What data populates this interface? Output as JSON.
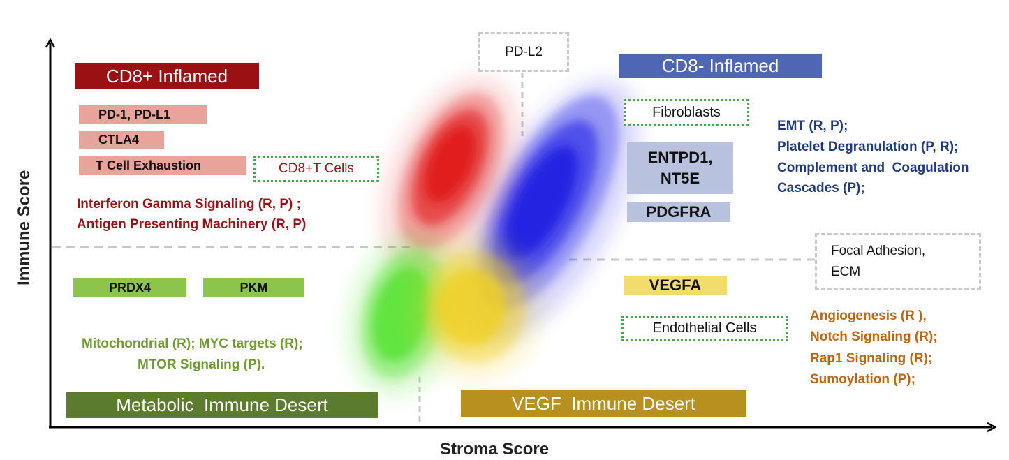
{
  "axes": {
    "x_label": "Stroma Score",
    "y_label": "Immune Score"
  },
  "quadrants": {
    "cd8_pos_inflamed": {
      "title": "CD8+ Inflamed",
      "title_color": "#9b1113",
      "genes": [
        "PD-1, PD-L1",
        "CTLA4",
        "T Cell Exhaustion"
      ],
      "gene_box_color": "#e8a39b",
      "cell_type": "CD8+T Cells",
      "pathways": [
        "Interferon Gamma Signaling (R, P) ;",
        "Antigen Presenting Machinery (R, P)"
      ],
      "pathway_color": "#9b1113"
    },
    "cd8_neg_inflamed": {
      "title": "CD8- Inflamed",
      "title_color": "#4f66b4",
      "cell_type": "Fibroblasts",
      "genes": [
        "ENTPD1,\nNT5E",
        "PDGFRA"
      ],
      "gene_box_color": "#b8c2df",
      "pathways": [
        "EMT (R, P);",
        "Platelet Degranulation (P, R);",
        "Complement and  Coagulation",
        "Cascades (P);"
      ],
      "pathway_color": "#1f3a7a"
    },
    "metabolic_desert": {
      "title": "Metabolic  Immune Desert",
      "title_color": "#5b7b2f",
      "genes": [
        "PRDX4",
        "PKM"
      ],
      "gene_box_color": "#8cc44c",
      "pathways": [
        "Mitochondrial (R); MYC targets (R);",
        "MTOR Signaling (P)."
      ],
      "pathway_color": "#6e9a2e"
    },
    "vegf_desert": {
      "title": "VEGF  Immune Desert",
      "title_color": "#b8901f",
      "genes": [
        "VEGFA"
      ],
      "gene_box_color": "#f1dc6c",
      "cell_type": "Endothelial Cells",
      "pathways": [
        "Angiogenesis (R ),",
        "Notch Signaling (R);",
        "Rap1 Signaling (R);",
        "Sumoylation (P);"
      ],
      "pathway_color": "#c0660f"
    }
  },
  "shared": {
    "pd_l2": "PD-L2",
    "focal_adhesion": "Focal Adhesion,\nECM"
  },
  "colors": {
    "red_cluster": "#e01818",
    "blue_cluster": "#2020e8",
    "green_cluster": "#48e020",
    "yellow_cluster": "#f0d020",
    "divider": "#c8c8c8"
  }
}
